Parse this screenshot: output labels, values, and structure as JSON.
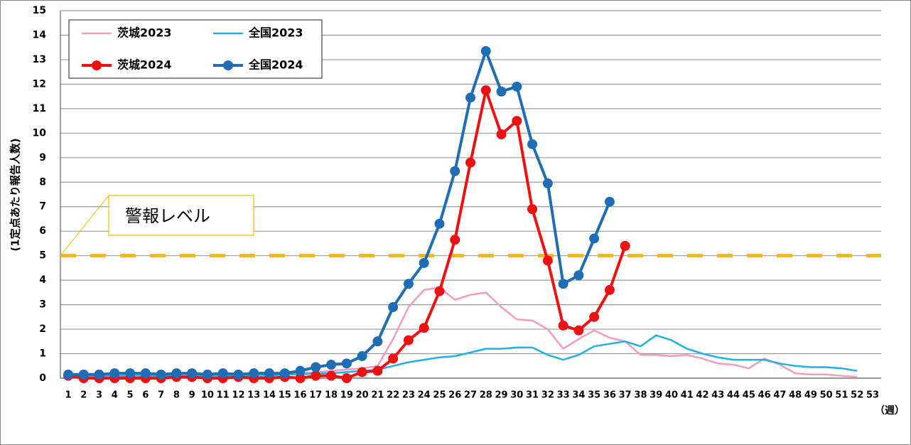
{
  "chart_data": {
    "type": "line",
    "y_axis_label": "(1定点あたり報告人数)",
    "x_axis_label": "（週）",
    "categories": [
      "1",
      "2",
      "3",
      "4",
      "5",
      "6",
      "7",
      "8",
      "9",
      "10",
      "11",
      "12",
      "13",
      "14",
      "15",
      "16",
      "17",
      "18",
      "19",
      "20",
      "21",
      "22",
      "23",
      "24",
      "25",
      "26",
      "27",
      "28",
      "29",
      "30",
      "31",
      "32",
      "33",
      "34",
      "35",
      "36",
      "37",
      "38",
      "39",
      "40",
      "41",
      "42",
      "43",
      "44",
      "45",
      "46",
      "47",
      "48",
      "49",
      "50",
      "51",
      "52",
      "53"
    ],
    "ylim": [
      0,
      15
    ],
    "yticks": [
      0,
      1,
      2,
      3,
      4,
      5,
      6,
      7,
      8,
      9,
      10,
      11,
      12,
      13,
      14,
      15
    ],
    "grid": true,
    "legend": "upper left",
    "threshold": {
      "value": 5,
      "label": "警報レベル",
      "color": "#f5b800"
    },
    "series": [
      {
        "name": "茨城2023",
        "color": "#f49ac1",
        "marker": false,
        "values": [
          0.1,
          0.05,
          0.05,
          0.05,
          0.05,
          0.05,
          0.05,
          0.05,
          0.05,
          0.05,
          0.05,
          0.05,
          0.05,
          0.1,
          0.15,
          0.2,
          0.25,
          0.3,
          0.35,
          0.4,
          0.5,
          1.6,
          2.9,
          3.6,
          3.7,
          3.2,
          3.4,
          3.5,
          2.9,
          2.4,
          2.35,
          2.0,
          1.2,
          1.6,
          1.95,
          1.65,
          1.5,
          0.95,
          0.95,
          0.9,
          0.95,
          0.8,
          0.6,
          0.55,
          0.4,
          0.8,
          0.55,
          0.2,
          0.15,
          0.15,
          0.1,
          0.05,
          null
        ]
      },
      {
        "name": "全国2023",
        "color": "#1fb0e6",
        "marker": false,
        "values": [
          0.1,
          0.1,
          0.1,
          0.1,
          0.1,
          0.1,
          0.1,
          0.1,
          0.1,
          0.1,
          0.1,
          0.1,
          0.1,
          0.1,
          0.15,
          0.15,
          0.2,
          0.2,
          0.25,
          0.3,
          0.35,
          0.5,
          0.65,
          0.75,
          0.85,
          0.9,
          1.05,
          1.2,
          1.2,
          1.25,
          1.25,
          0.95,
          0.75,
          0.95,
          1.3,
          1.4,
          1.5,
          1.3,
          1.75,
          1.55,
          1.2,
          1.0,
          0.85,
          0.75,
          0.75,
          0.75,
          0.6,
          0.5,
          0.45,
          0.45,
          0.4,
          0.3,
          null
        ]
      },
      {
        "name": "茨城2024",
        "color": "#ee1111",
        "marker": true,
        "values": [
          0.1,
          0,
          0,
          0,
          0,
          0,
          0,
          0.05,
          0.05,
          0,
          0,
          0.05,
          0,
          0,
          0.05,
          0,
          0.1,
          0.1,
          0,
          0.25,
          0.3,
          0.8,
          1.55,
          2.05,
          3.55,
          5.65,
          8.8,
          11.75,
          9.95,
          10.5,
          6.9,
          4.8,
          2.15,
          1.95,
          2.5,
          3.6,
          5.4,
          null,
          null,
          null,
          null,
          null,
          null,
          null,
          null,
          null,
          null,
          null,
          null,
          null,
          null,
          null,
          null
        ]
      },
      {
        "name": "全国2024",
        "color": "#1f6db5",
        "marker": true,
        "values": [
          0.15,
          0.15,
          0.15,
          0.2,
          0.2,
          0.2,
          0.15,
          0.2,
          0.2,
          0.15,
          0.2,
          0.15,
          0.2,
          0.2,
          0.2,
          0.3,
          0.45,
          0.55,
          0.6,
          0.9,
          1.5,
          2.9,
          3.85,
          4.7,
          6.3,
          8.45,
          11.45,
          13.35,
          11.7,
          11.9,
          9.55,
          7.95,
          3.85,
          4.2,
          5.7,
          7.2,
          null,
          null,
          null,
          null,
          null,
          null,
          null,
          null,
          null,
          null,
          null,
          null,
          null,
          null,
          null,
          null,
          null
        ]
      }
    ]
  }
}
